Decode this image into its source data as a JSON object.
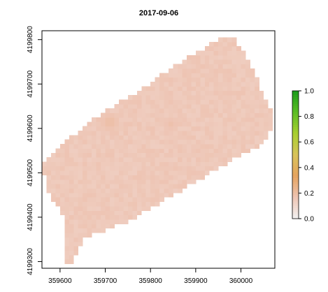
{
  "chart_data": {
    "type": "heatmap",
    "title": "2017-09-06",
    "xlabel": "",
    "ylabel": "",
    "x_ticks": [
      359600,
      359700,
      359800,
      359900,
      360000
    ],
    "y_ticks": [
      4199300,
      4199400,
      4199500,
      4199600,
      4199700,
      4199800
    ],
    "xlim": [
      359560,
      360075
    ],
    "ylim": [
      4199285,
      4199820
    ],
    "grid": false,
    "legend": {
      "type": "colorbar",
      "position": "right",
      "range": [
        0.0,
        1.0
      ],
      "ticks": [
        "0.0",
        "0.2",
        "0.4",
        "0.6",
        "0.8",
        "1.0"
      ],
      "colors": [
        "#f2f2f2",
        "#eec4b3",
        "#e6a35f",
        "#d8c35a",
        "#a8cf2f",
        "#5bbd25",
        "#1a9a1a"
      ]
    },
    "field": {
      "cell_size": 10,
      "base_value": 0.15,
      "value_range": [
        0.12,
        0.22
      ],
      "outline": [
        [
          359560,
          4199520
        ],
        [
          359560,
          4199500
        ],
        [
          359575,
          4199500
        ],
        [
          359575,
          4199460
        ],
        [
          359590,
          4199430
        ],
        [
          359610,
          4199400
        ],
        [
          359615,
          4199380
        ],
        [
          359615,
          4199300
        ],
        [
          359625,
          4199290
        ],
        [
          359630,
          4199310
        ],
        [
          359640,
          4199320
        ],
        [
          359650,
          4199350
        ],
        [
          359700,
          4199370
        ],
        [
          359750,
          4199390
        ],
        [
          359800,
          4199420
        ],
        [
          359850,
          4199450
        ],
        [
          359900,
          4199480
        ],
        [
          359950,
          4199510
        ],
        [
          360000,
          4199540
        ],
        [
          360040,
          4199560
        ],
        [
          360060,
          4199580
        ],
        [
          360075,
          4199610
        ],
        [
          360065,
          4199650
        ],
        [
          360040,
          4199700
        ],
        [
          360020,
          4199750
        ],
        [
          360000,
          4199780
        ],
        [
          359980,
          4199810
        ],
        [
          359950,
          4199800
        ],
        [
          359900,
          4199770
        ],
        [
          359850,
          4199740
        ],
        [
          359800,
          4199700
        ],
        [
          359750,
          4199670
        ],
        [
          359700,
          4199640
        ],
        [
          359650,
          4199600
        ],
        [
          359600,
          4199560
        ],
        [
          359570,
          4199535
        ]
      ],
      "hotspots": [
        {
          "x": 359710,
          "y": 4199615,
          "radius": 25,
          "value": 0.2
        },
        {
          "x": 359845,
          "y": 4199610,
          "radius": 20,
          "value": 0.18
        }
      ]
    }
  }
}
